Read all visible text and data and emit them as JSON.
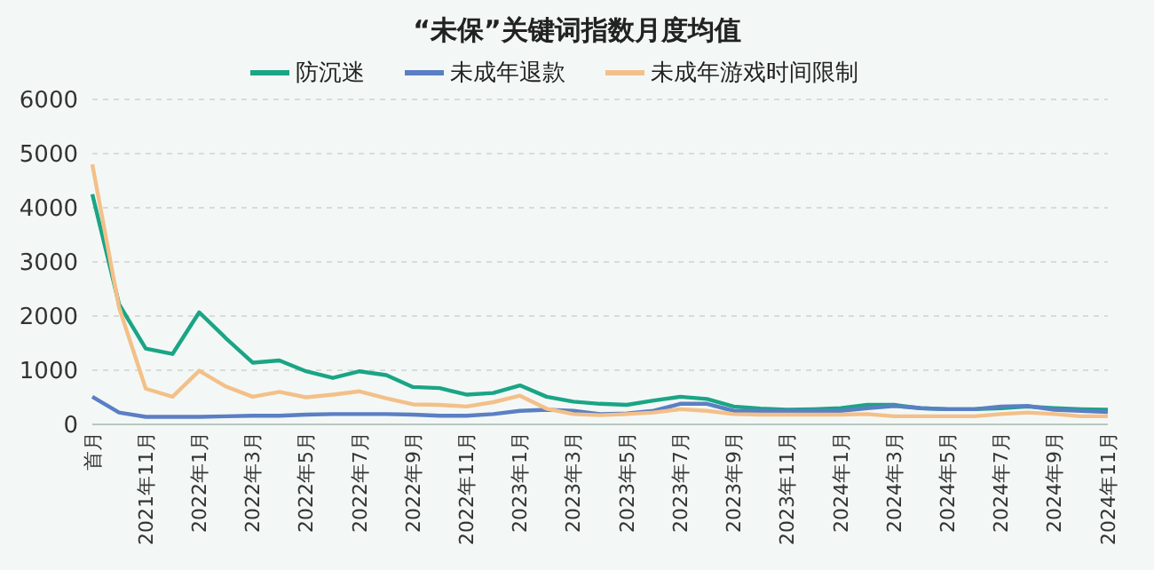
{
  "chart_data": {
    "type": "line",
    "title": "“未保”关键词指数月度均值",
    "categories": [
      "首月",
      null,
      "2021年11月",
      null,
      "2022年1月",
      null,
      "2022年3月",
      null,
      "2022年5月",
      null,
      "2022年7月",
      null,
      "2022年9月",
      null,
      "2022年11月",
      null,
      "2023年1月",
      null,
      "2023年3月",
      null,
      "2023年5月",
      null,
      "2023年7月",
      null,
      "2023年9月",
      null,
      "2023年11月",
      null,
      "2024年1月",
      null,
      "2024年3月",
      null,
      "2024年5月",
      null,
      "2024年7月",
      null,
      "2024年9月",
      null,
      "2024年11月"
    ],
    "series": [
      {
        "name": "防沉迷",
        "color": "#1aa585",
        "values": [
          4250,
          2220,
          1400,
          1300,
          2070,
          1590,
          1140,
          1180,
          980,
          860,
          980,
          910,
          690,
          670,
          550,
          580,
          720,
          510,
          420,
          380,
          360,
          440,
          510,
          470,
          330,
          290,
          270,
          280,
          300,
          360,
          360,
          300,
          280,
          280,
          300,
          330,
          300,
          280,
          270
        ]
      },
      {
        "name": "未成年退款",
        "color": "#5b7fc4",
        "values": [
          510,
          220,
          140,
          140,
          140,
          150,
          160,
          160,
          180,
          190,
          190,
          190,
          180,
          160,
          160,
          190,
          250,
          270,
          250,
          190,
          200,
          250,
          380,
          380,
          250,
          250,
          250,
          250,
          250,
          300,
          340,
          300,
          280,
          280,
          330,
          340,
          270,
          250,
          230
        ]
      },
      {
        "name": "未成年游戏时间限制",
        "color": "#f3c089",
        "values": [
          4800,
          2160,
          660,
          510,
          990,
          700,
          510,
          600,
          500,
          550,
          610,
          480,
          370,
          360,
          330,
          410,
          530,
          290,
          190,
          170,
          190,
          220,
          280,
          250,
          190,
          180,
          180,
          180,
          180,
          190,
          150,
          150,
          150,
          150,
          190,
          220,
          190,
          150,
          150
        ]
      }
    ],
    "ylim": [
      0,
      6000
    ],
    "yticks": [
      0,
      1000,
      2000,
      3000,
      4000,
      5000,
      6000
    ],
    "grid": "y",
    "legend": "top",
    "marker": "none",
    "line_style": "solid"
  }
}
